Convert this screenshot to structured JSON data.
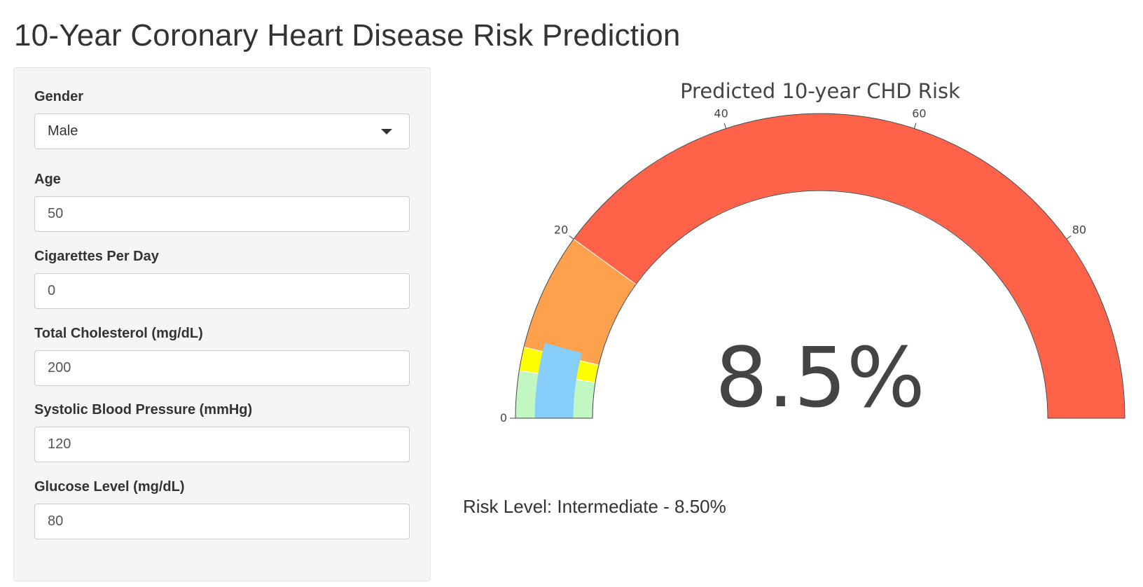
{
  "title": "10-Year Coronary Heart Disease Risk Prediction",
  "inputs": {
    "gender": {
      "label": "Gender",
      "value": "Male"
    },
    "age": {
      "label": "Age",
      "value": "50"
    },
    "cigs": {
      "label": "Cigarettes Per Day",
      "value": "0"
    },
    "chol": {
      "label": "Total Cholesterol (mg/dL)",
      "value": "200"
    },
    "sbp": {
      "label": "Systolic Blood Pressure (mmHg)",
      "value": "120"
    },
    "glucose": {
      "label": "Glucose Level (mg/dL)",
      "value": "80"
    }
  },
  "chart_data": {
    "type": "gauge",
    "title": "Predicted 10-year CHD Risk",
    "value": 8.5,
    "value_label": "8.5%",
    "range": [
      0,
      100
    ],
    "ticks": [
      0,
      20,
      40,
      60,
      80
    ],
    "tick_labels": [
      "0",
      "20",
      "40",
      "60",
      "80"
    ],
    "steps": [
      {
        "range": [
          0,
          5
        ],
        "color": "#c1f7c1"
      },
      {
        "range": [
          5,
          7.5
        ],
        "color": "#ffff00"
      },
      {
        "range": [
          7.5,
          20
        ],
        "color": "#fda14d"
      },
      {
        "range": [
          20,
          100
        ],
        "color": "#fe6249"
      }
    ],
    "bar_color": "#87cefa"
  },
  "risk_text": "Risk Level: Intermediate - 8.50%"
}
